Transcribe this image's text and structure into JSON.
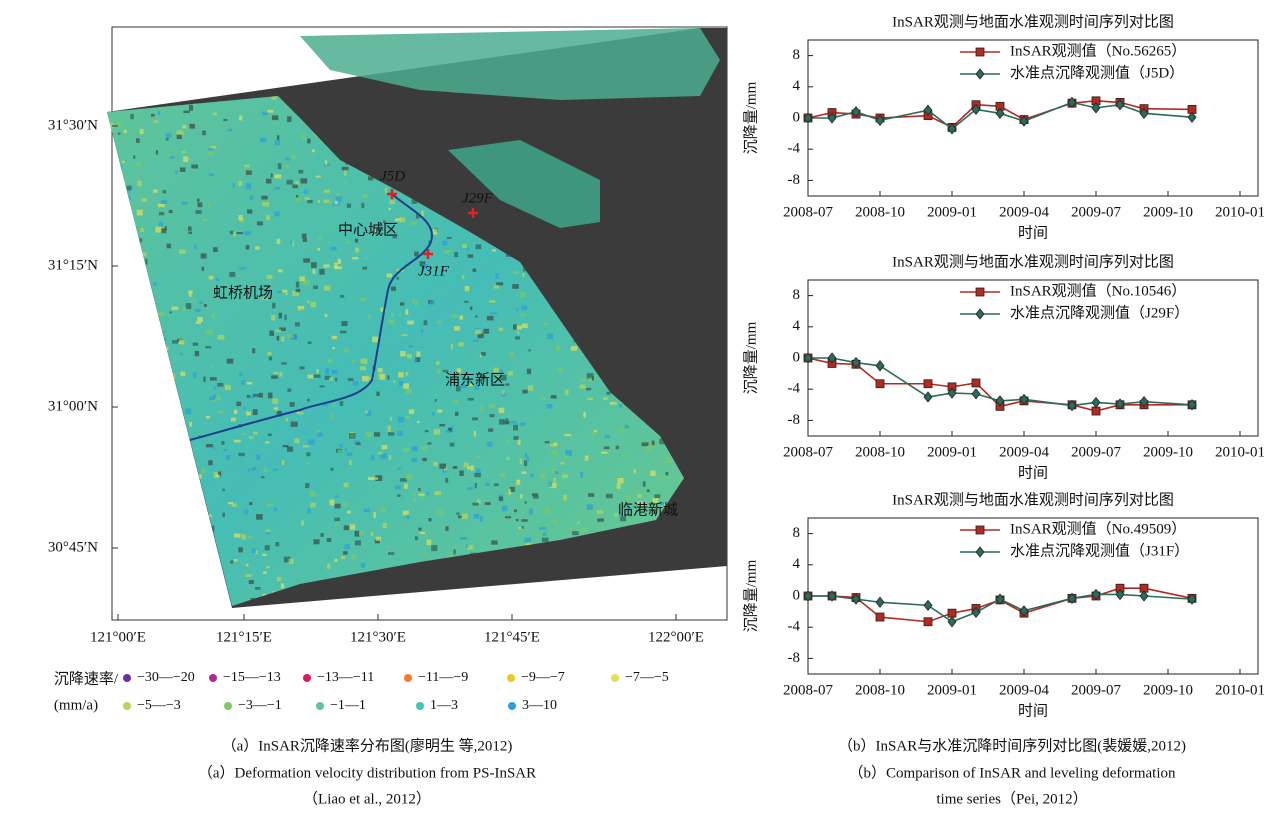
{
  "map": {
    "yticks": [
      "31°30′N",
      "31°15′N",
      "31°00′N",
      "30°45′N"
    ],
    "xticks": [
      "121°00′E",
      "121°15′E",
      "121°30′E",
      "121°45′E",
      "122°00′E"
    ],
    "points": [
      "J5D",
      "J29F",
      "J31F"
    ],
    "places": [
      "中心城区",
      "虹桥机场",
      "浦东新区",
      "临港新城"
    ],
    "legend": {
      "title": [
        "沉降速率/",
        "(mm/a)"
      ],
      "items": [
        {
          "label": "−30—−20",
          "color": "#6a2fa0"
        },
        {
          "label": "−15—−13",
          "color": "#b0289a"
        },
        {
          "label": "−13—−11",
          "color": "#d81b60"
        },
        {
          "label": "−11—−9",
          "color": "#f07c30"
        },
        {
          "label": "−9—−7",
          "color": "#f2c820"
        },
        {
          "label": "−7—−5",
          "color": "#e2e05a"
        },
        {
          "label": "−5—−3",
          "color": "#b6d65a"
        },
        {
          "label": "−3—−1",
          "color": "#7ec86a"
        },
        {
          "label": "−1—1",
          "color": "#5fc49a"
        },
        {
          "label": "1—3",
          "color": "#40c4b4"
        },
        {
          "label": "3—10",
          "color": "#2a9fd8"
        }
      ]
    }
  },
  "chart_data": [
    {
      "type": "line",
      "title": "InSAR观测与地面水准观测时间序列对比图",
      "ylabel": "沉降量/mm",
      "xlabel": "时间",
      "x": [
        "2008-07",
        "2008-08",
        "2008-09",
        "2008-10",
        "2008-12",
        "2009-01",
        "2009-02",
        "2009-03",
        "2009-04",
        "2009-06",
        "2009-07",
        "2009-08",
        "2009-09",
        "2009-11"
      ],
      "xlim": [
        "2008-07",
        "2010-01"
      ],
      "xticks": [
        "2008-07",
        "2008-10",
        "2009-01",
        "2009-04",
        "2009-07",
        "2009-10",
        "2010-01"
      ],
      "ylim": [
        -10,
        10
      ],
      "yticks": [
        8,
        4,
        0,
        -4,
        -8
      ],
      "legend": "upper right",
      "series": [
        {
          "name": "InSAR观测值（No.56265）",
          "color": "#b22a22",
          "marker": "square",
          "values": [
            0,
            0.7,
            0.5,
            0,
            0.3,
            -1.2,
            1.7,
            1.5,
            -0.2,
            1.9,
            2.2,
            2.0,
            1.2,
            1.1
          ]
        },
        {
          "name": "水准点沉降观测值（J5D）",
          "color": "#2a6b5a",
          "marker": "diamond",
          "values": [
            0,
            0,
            0.8,
            -0.3,
            1.0,
            -1.4,
            1.1,
            0.6,
            -0.4,
            2.0,
            1.3,
            1.7,
            0.6,
            0.1
          ]
        }
      ]
    },
    {
      "type": "line",
      "title": "InSAR观测与地面水准观测时间序列对比图",
      "ylabel": "沉降量/mm",
      "xlabel": "时间",
      "x": [
        "2008-07",
        "2008-08",
        "2008-09",
        "2008-10",
        "2008-12",
        "2009-01",
        "2009-02",
        "2009-03",
        "2009-04",
        "2009-06",
        "2009-07",
        "2009-08",
        "2009-09",
        "2009-11"
      ],
      "xlim": [
        "2008-07",
        "2010-01"
      ],
      "xticks": [
        "2008-07",
        "2008-10",
        "2009-01",
        "2009-04",
        "2009-07",
        "2009-10",
        "2010-01"
      ],
      "ylim": [
        -10,
        10
      ],
      "yticks": [
        8,
        4,
        0,
        -4,
        -8
      ],
      "legend": "upper right",
      "series": [
        {
          "name": "InSAR观测值（No.10546）",
          "color": "#b22a22",
          "marker": "square",
          "values": [
            0,
            -0.7,
            -0.8,
            -3.3,
            -3.3,
            -3.7,
            -3.2,
            -6.2,
            -5.5,
            -6.0,
            -6.8,
            -6.0,
            -6.0,
            -6.0
          ]
        },
        {
          "name": "水准点沉降观测值（J29F）",
          "color": "#2a6b5a",
          "marker": "diamond",
          "values": [
            0,
            0,
            -0.6,
            -1.0,
            -5.0,
            -4.5,
            -4.6,
            -5.5,
            -5.3,
            -6.1,
            -5.7,
            -5.9,
            -5.6,
            -6.0
          ]
        }
      ]
    },
    {
      "type": "line",
      "title": "InSAR观测与地面水准观测时间序列对比图",
      "ylabel": "沉降量/mm",
      "xlabel": "时间",
      "x": [
        "2008-07",
        "2008-08",
        "2008-09",
        "2008-10",
        "2008-12",
        "2009-01",
        "2009-02",
        "2009-03",
        "2009-04",
        "2009-06",
        "2009-07",
        "2009-08",
        "2009-09",
        "2009-11"
      ],
      "xlim": [
        "2008-07",
        "2010-01"
      ],
      "xticks": [
        "2008-07",
        "2008-10",
        "2009-01",
        "2009-04",
        "2009-07",
        "2009-10",
        "2010-01"
      ],
      "ylim": [
        -10,
        10
      ],
      "yticks": [
        8,
        4,
        0,
        -4,
        -8
      ],
      "legend": "upper right",
      "series": [
        {
          "name": "InSAR观测值（No.49509）",
          "color": "#b22a22",
          "marker": "square",
          "values": [
            0,
            0,
            -0.2,
            -2.7,
            -3.3,
            -2.2,
            -1.6,
            -0.5,
            -2.2,
            -0.3,
            0,
            1.0,
            1.0,
            -0.3
          ]
        },
        {
          "name": "水准点沉降观测值（J31F）",
          "color": "#2a6b5a",
          "marker": "diamond",
          "values": [
            0,
            0,
            -0.4,
            -0.8,
            -1.2,
            -3.3,
            -2.1,
            -0.4,
            -1.9,
            -0.3,
            0.2,
            0.2,
            0,
            -0.4
          ]
        }
      ]
    }
  ],
  "captions": {
    "left": [
      "（a）InSAR沉降速率分布图(廖明生 等,2012)",
      "（a）Deformation velocity distribution from PS-InSAR",
      "（Liao et al., 2012）"
    ],
    "right": [
      "（b）InSAR与水准沉降时间序列对比图(裴媛媛,2012)",
      "（b）Comparison of InSAR and leveling deformation",
      "time series（Pei, 2012）"
    ]
  }
}
